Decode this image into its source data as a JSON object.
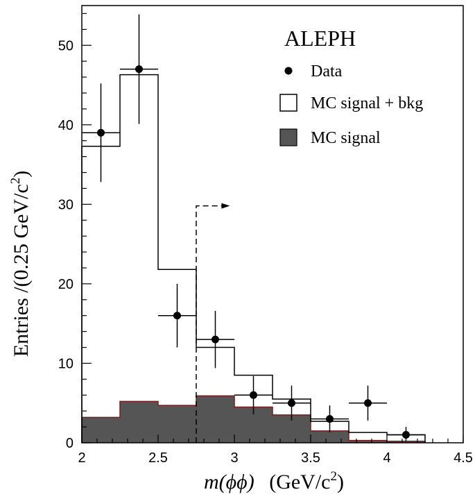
{
  "chart_data": {
    "type": "histogram",
    "experiment_label": "ALEPH",
    "xlabel": {
      "main": "m(ϕϕ)",
      "unit": "(GeV/c",
      "sup": "2",
      "close": ")"
    },
    "ylabel": {
      "main": "Entries /(0.25 GeV/c",
      "sup": "2",
      "close": ")"
    },
    "xlim": [
      2,
      4.5
    ],
    "ylim": [
      0,
      55
    ],
    "x_ticks": [
      2,
      2.5,
      3,
      3.5,
      4,
      4.5
    ],
    "x_tick_labels": [
      "2",
      "2.5",
      "3",
      "3.5",
      "4",
      "4.5"
    ],
    "y_ticks": [
      0,
      10,
      20,
      30,
      40,
      50
    ],
    "y_tick_labels": [
      "0",
      "10",
      "20",
      "30",
      "40",
      "50"
    ],
    "bin_edges": [
      2.0,
      2.25,
      2.5,
      2.75,
      3.0,
      3.25,
      3.5,
      3.75,
      4.0,
      4.25
    ],
    "mc_signal_plus_bkg": [
      37.3,
      46.3,
      21.8,
      12.0,
      8.5,
      5.5,
      2.7,
      1.3,
      1.0
    ],
    "mc_signal": [
      3.2,
      5.2,
      4.7,
      5.9,
      4.5,
      3.5,
      1.5,
      0.3,
      0.2
    ],
    "data": {
      "x": [
        2.125,
        2.375,
        2.625,
        2.875,
        3.125,
        3.375,
        3.625,
        3.875,
        4.125
      ],
      "y": [
        39,
        47,
        16,
        13,
        6,
        5,
        3,
        5,
        1
      ],
      "y_err_low": [
        6.2,
        6.9,
        4.0,
        3.6,
        2.4,
        2.2,
        1.7,
        2.2,
        0.8
      ],
      "y_err_high": [
        6.2,
        6.9,
        4.0,
        3.6,
        2.4,
        2.2,
        1.7,
        2.2,
        1.0
      ],
      "x_half_width": 0.125
    },
    "cut": {
      "x": 2.75,
      "y_top": 29.8,
      "arrow_to_x": 2.97
    },
    "legend": {
      "placement": "top-right",
      "entries": [
        {
          "label": "Data",
          "style": "marker"
        },
        {
          "label": "MC  signal + bkg",
          "style": "open-box"
        },
        {
          "label": "MC  signal",
          "style": "filled-box"
        }
      ]
    },
    "colors": {
      "signal_fill": "#555555",
      "signal_edge": "#7a1f1f",
      "line": "#000000"
    }
  }
}
